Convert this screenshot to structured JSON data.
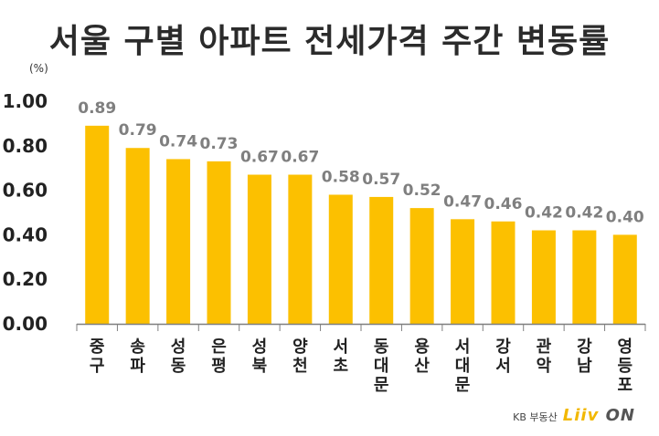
{
  "title": "서울 구별 아파트 전세가격 주간 변동률",
  "brand": {
    "kb": "KB 부동산",
    "liiv": "Liiv",
    "on": "ON"
  },
  "chart_data": {
    "type": "bar",
    "title": "서울 구별 아파트 전세가격 주간 변동률",
    "unit": "(%)",
    "categories": [
      "중구",
      "송파",
      "성동",
      "은평",
      "성북",
      "양천",
      "서초",
      "동대문",
      "용산",
      "서대문",
      "강서",
      "관악",
      "강남",
      "영등포"
    ],
    "values": [
      0.89,
      0.79,
      0.74,
      0.73,
      0.67,
      0.67,
      0.58,
      0.57,
      0.52,
      0.47,
      0.46,
      0.42,
      0.42,
      0.4
    ],
    "value_labels": [
      "0.89",
      "0.79",
      "0.74",
      "0.73",
      "0.67",
      "0.67",
      "0.58",
      "0.57",
      "0.52",
      "0.47",
      "0.46",
      "0.42",
      "0.42",
      "0.40"
    ],
    "yticks": [
      "0.00",
      "0.20",
      "0.40",
      "0.60",
      "0.80",
      "1.00"
    ],
    "ylim": [
      0,
      1.0
    ],
    "grid": false,
    "colors": {
      "bar": "#fcc000",
      "value_label": "#7f7f7f",
      "axis": "#7f7f7f",
      "text": "#222222"
    }
  }
}
